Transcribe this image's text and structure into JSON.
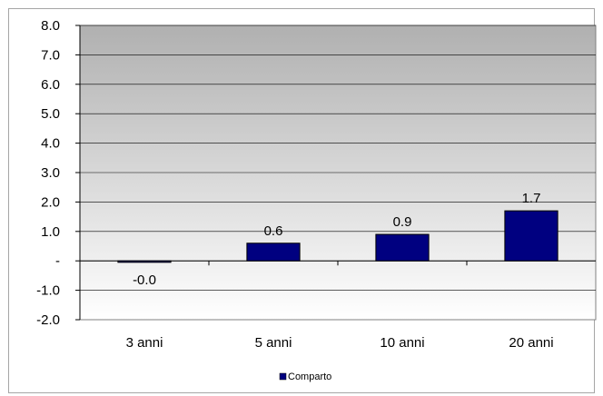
{
  "chart_data": {
    "type": "bar",
    "categories": [
      "3 anni",
      "5 anni",
      "10 anni",
      "20 anni"
    ],
    "series": [
      {
        "name": "Comparto",
        "values": [
          -0.05,
          0.6,
          0.9,
          1.7
        ],
        "labels": [
          "-0.0",
          "0.6",
          "0.9",
          "1.7"
        ]
      }
    ],
    "ylim": [
      -2.0,
      8.0
    ],
    "yticks": [
      {
        "value": 8.0,
        "label": "8.0"
      },
      {
        "value": 7.0,
        "label": "7.0"
      },
      {
        "value": 6.0,
        "label": "6.0"
      },
      {
        "value": 5.0,
        "label": "5.0"
      },
      {
        "value": 4.0,
        "label": "4.0"
      },
      {
        "value": 3.0,
        "label": "3.0"
      },
      {
        "value": 2.0,
        "label": "2.0"
      },
      {
        "value": 1.0,
        "label": "1.0"
      },
      {
        "value": 0.0,
        "label": "-"
      },
      {
        "value": -1.0,
        "label": "-1.0"
      },
      {
        "value": -2.0,
        "label": "-2.0"
      }
    ],
    "grid": true,
    "legend": "bottom-center",
    "colors": {
      "bar": "#000080",
      "plot_top": "#b0b0b0",
      "plot_bottom": "#ffffff",
      "grid": "#000000"
    }
  }
}
